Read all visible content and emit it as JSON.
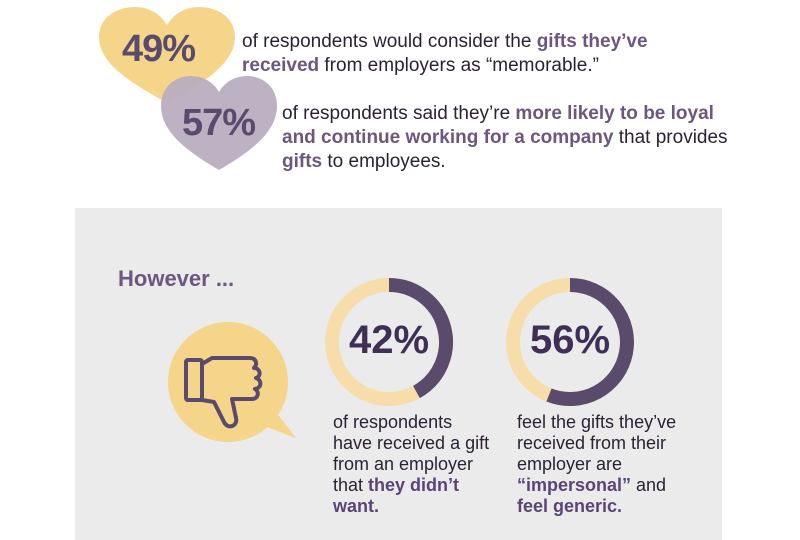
{
  "colors": {
    "gold": "#f5d58a",
    "light_gold": "#f6ddaa",
    "purple": "#5a4a6b",
    "mauve": "#b9aec0",
    "dark_purple": "#3d2f55"
  },
  "stat1": {
    "value": "49%",
    "pre": "of respondents would consider the ",
    "highlight": "gifts they’ve received",
    "post": " from employers as “memorable.”"
  },
  "stat2": {
    "value": "57%",
    "pre": "of respondents said they’re ",
    "highlight1": "more likely to be loyal and continue working for a company",
    "mid": " that provides ",
    "highlight2": "gifts",
    "post": " to employees."
  },
  "however": "However ...",
  "donut1": {
    "value": "42%",
    "fraction": 0.42,
    "text_pre": "of respondents have received a gift from an employer that ",
    "text_highlight": "they didn’t want."
  },
  "donut2": {
    "value": "56%",
    "fraction": 0.56,
    "text_pre": "feel the gifts they’ve received from their employer are ",
    "text_highlight1": "“impersonal”",
    "text_mid": " and ",
    "text_highlight2": "feel generic."
  },
  "icons": {
    "thumbs_down": "thumbs-down-icon"
  }
}
